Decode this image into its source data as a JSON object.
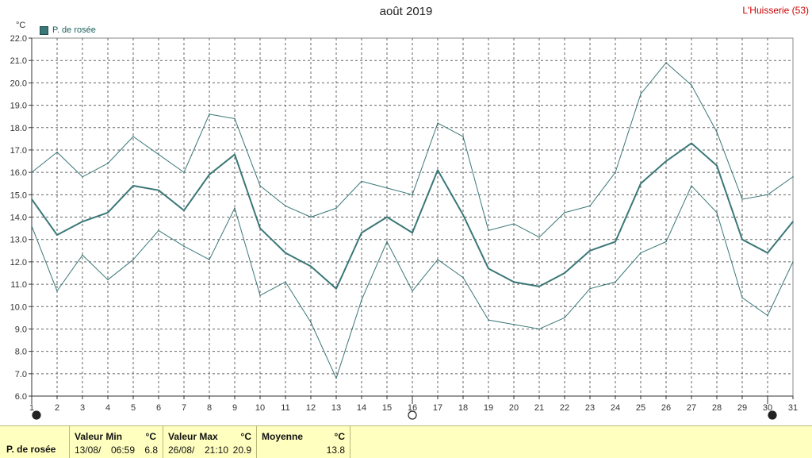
{
  "title": "août 2019",
  "station": "L'Huisserie (53)",
  "unit": "°C",
  "legend_label": "P. de rosée",
  "colors": {
    "line": "#3b7777",
    "grid": "#666666",
    "footer_bg": "#ffffc0",
    "station": "#cc0000"
  },
  "chart_data": {
    "type": "line",
    "x": [
      1,
      2,
      3,
      4,
      5,
      6,
      7,
      8,
      9,
      10,
      11,
      12,
      13,
      14,
      15,
      16,
      17,
      18,
      19,
      20,
      21,
      22,
      23,
      24,
      25,
      26,
      27,
      28,
      29,
      30,
      31
    ],
    "ylim": [
      6.0,
      22.0
    ],
    "yticks": [
      "6.0",
      "7.0",
      "8.0",
      "9.0",
      "10.0",
      "11.0",
      "12.0",
      "13.0",
      "14.0",
      "15.0",
      "16.0",
      "17.0",
      "18.0",
      "19.0",
      "20.0",
      "21.0",
      "22.0"
    ],
    "series": [
      {
        "name": "P. de rosée",
        "role": "mean",
        "values": [
          14.8,
          13.2,
          13.8,
          14.2,
          15.4,
          15.2,
          14.3,
          15.9,
          16.8,
          13.5,
          12.4,
          11.8,
          10.8,
          13.3,
          14.0,
          13.3,
          16.1,
          14.1,
          11.7,
          11.1,
          10.9,
          11.5,
          12.5,
          12.9,
          15.5,
          16.5,
          17.3,
          16.3,
          13.0,
          12.4,
          13.8
        ]
      },
      {
        "role": "max",
        "values": [
          16.0,
          16.9,
          15.8,
          16.4,
          17.6,
          16.8,
          16.0,
          18.6,
          18.4,
          15.4,
          14.5,
          14.0,
          14.4,
          15.6,
          15.3,
          15.0,
          18.2,
          17.6,
          13.4,
          13.7,
          13.1,
          14.2,
          14.5,
          16.0,
          19.5,
          20.9,
          19.9,
          17.8,
          14.8,
          15.0,
          15.8
        ]
      },
      {
        "role": "min",
        "values": [
          13.6,
          10.7,
          12.3,
          11.2,
          12.1,
          13.4,
          12.7,
          12.1,
          14.4,
          10.5,
          11.1,
          9.3,
          6.8,
          10.3,
          12.9,
          10.7,
          12.1,
          11.3,
          9.4,
          9.2,
          9.0,
          9.5,
          10.8,
          11.1,
          12.4,
          12.9,
          15.4,
          14.2,
          10.4,
          9.6,
          12.0
        ]
      }
    ]
  },
  "footer": {
    "row_label": "P. de rosée",
    "min_header": "Valeur Min",
    "min_unit": "°C",
    "min_date": "13/08/",
    "min_time": "06:59",
    "min_value": "6.8",
    "max_header": "Valeur Max",
    "max_unit": "°C",
    "max_date": "26/08/",
    "max_time": "21:10",
    "max_value": "20.9",
    "avg_header": "Moyenne",
    "avg_unit": "°C",
    "avg_value": "13.8"
  }
}
